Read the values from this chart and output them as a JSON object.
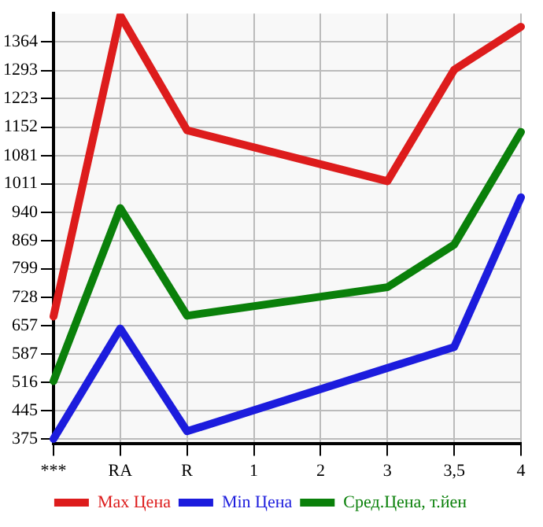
{
  "chart_data": {
    "type": "line",
    "categories": [
      "***",
      "RA",
      "R",
      "1",
      "2",
      "3",
      "3,5",
      "4"
    ],
    "series": [
      {
        "name": "Max Цена",
        "color": "#dd1c1c",
        "values": [
          680,
          1430,
          1144,
          null,
          null,
          1017,
          1295,
          1402
        ]
      },
      {
        "name": "Min Цена",
        "color": "#1c1cdd",
        "values": [
          375,
          650,
          394,
          null,
          null,
          null,
          604,
          977
        ]
      },
      {
        "name": "Сред.Цена, т.йен",
        "color": "#0a800a",
        "values": [
          519,
          950,
          682,
          null,
          null,
          753,
          859,
          1140
        ]
      }
    ],
    "ylim": [
      364,
      1435
    ],
    "yticks": [
      375,
      445,
      516,
      587,
      657,
      728,
      799,
      869,
      940,
      1011,
      1081,
      1152,
      1223,
      1293,
      1364
    ],
    "grid": true,
    "legend": "bottom",
    "marker": "none",
    "line_style": "solid"
  }
}
